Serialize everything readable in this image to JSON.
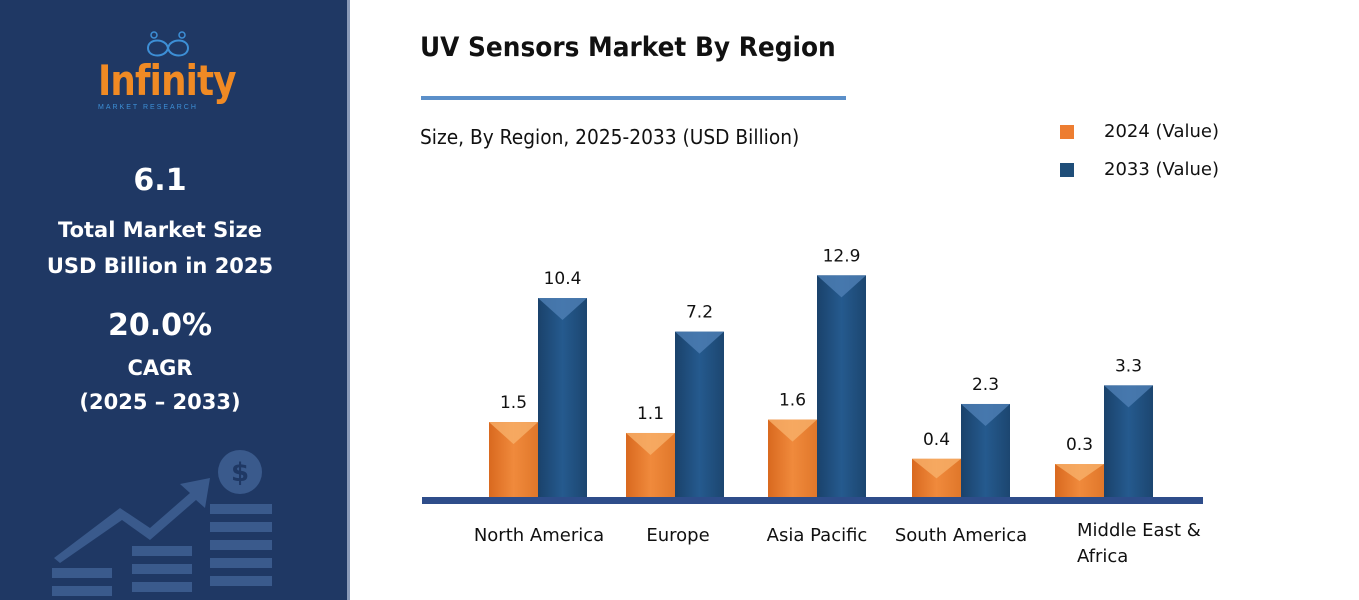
{
  "sidebar": {
    "logo": {
      "name": "Infinity",
      "tagline": "MARKET RESEARCH"
    },
    "market_size": "6.1",
    "market_size_label_1": "Total Market Size",
    "market_size_label_2": "USD Billion in 2025",
    "cagr": "20.0%",
    "cagr_label": "CAGR",
    "cagr_period": "(2025 – 2033)",
    "icon": "growth-chart-dollar-icon"
  },
  "chart_data": {
    "type": "bar",
    "title": "UV Sensors Market By Region",
    "subtitle": "Size, By Region, 2025-2033 (USD Billion)",
    "categories": [
      "North America",
      "Europe",
      "Asia Pacific",
      "South America",
      "Middle East & Africa"
    ],
    "series": [
      {
        "name": "2024 (Value)",
        "color": "#ed7d31",
        "values": [
          1.5,
          1.1,
          1.6,
          0.4,
          0.3
        ]
      },
      {
        "name": "2033 (Value)",
        "color": "#1f4e79",
        "values": [
          10.4,
          7.2,
          12.9,
          2.3,
          3.3
        ]
      }
    ],
    "legend": "top-right",
    "grid": false
  }
}
